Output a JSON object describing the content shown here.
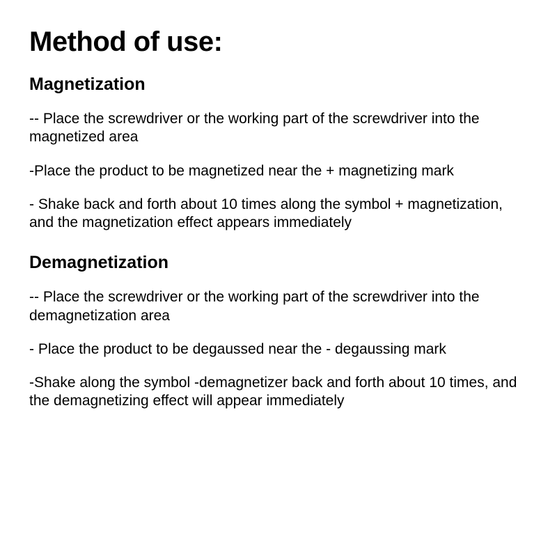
{
  "title": "Method of use:",
  "sections": [
    {
      "heading": "Magnetization",
      "steps": [
        "-- Place the screwdriver or the working part of the screwdriver into the magnetized area",
        "-Place the product to be magnetized near the + magnetizing mark",
        "- Shake back and forth about 10 times along the symbol + magnetization, and the magnetization effect appears immediately"
      ]
    },
    {
      "heading": "Demagnetization",
      "steps": [
        "-- Place the screwdriver or the working part of the screwdriver into the demagnetization area",
        "- Place the product to be degaussed near the - degaussing mark",
        "-Shake along the symbol -demagnetizer back and forth about 10 times, and the demagnetizing effect will appear immediately"
      ]
    }
  ],
  "styling": {
    "background_color": "#ffffff",
    "text_color": "#000000",
    "title_fontsize": 40,
    "section_heading_fontsize": 25,
    "step_fontsize": 21,
    "font_family": "Arial, Helvetica, sans-serif"
  }
}
